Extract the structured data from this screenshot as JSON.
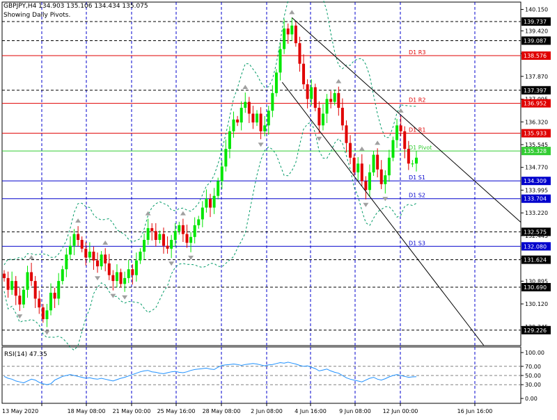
{
  "header": {
    "symbol_line": "GBPJPY,H4  134.903 135.106 134.434 135.075",
    "subtitle": "Showing Daily Pivots."
  },
  "rsi_label": "RSI(14) 47.35",
  "colors": {
    "bull": "#00e600",
    "bear": "#e00000",
    "resistance": "#e00000",
    "pivot": "#33cc33",
    "support": "#0000cc",
    "dashed": "#000000",
    "bands": "#009966",
    "rsi": "#1e90ff",
    "vgrid": "#0000cc",
    "fractal": "#a0a0a0"
  },
  "chart_data": [
    {
      "type": "candlestick",
      "symbol": "GBPJPY",
      "timeframe": "H4",
      "ylim": [
        128.7,
        140.4
      ],
      "yticks": [
        140.15,
        139.42,
        138.645,
        137.87,
        137.095,
        136.32,
        135.545,
        134.77,
        133.995,
        133.22,
        132.445,
        131.67,
        130.895,
        130.12,
        129.345
      ],
      "x_labels": [
        "13 May 2020",
        "18 May 08:00",
        "21 May 00:00",
        "25 May 16:00",
        "28 May 08:00",
        "2 Jun 08:00",
        "4 Jun 16:00",
        "9 Jun 08:00",
        "12 Jun 00:00",
        "16 Jun 16:00"
      ],
      "pivot_lines": [
        {
          "label": "D1 R3",
          "value": 138.576,
          "kind": "resistance"
        },
        {
          "label": "D1 R2",
          "value": 136.952,
          "kind": "resistance"
        },
        {
          "label": "D1 R1",
          "value": 135.933,
          "kind": "resistance"
        },
        {
          "label": "D1 Pivot",
          "value": 135.328,
          "kind": "pivot"
        },
        {
          "label": "D1 S1",
          "value": 134.309,
          "kind": "support"
        },
        {
          "label": "D1 S2",
          "value": 133.704,
          "kind": "support"
        },
        {
          "label": "D1 S3",
          "value": 132.08,
          "kind": "support"
        }
      ],
      "dashed_levels": [
        139.737,
        139.087,
        137.397,
        132.575,
        131.624,
        130.69,
        129.226
      ],
      "closes": [
        131.0,
        130.6,
        130.9,
        130.4,
        130.1,
        130.6,
        131.2,
        130.9,
        130.3,
        130.0,
        129.6,
        129.9,
        130.5,
        130.3,
        130.9,
        131.3,
        131.8,
        132.1,
        132.5,
        132.3,
        132.0,
        131.7,
        131.9,
        131.6,
        131.4,
        131.8,
        131.5,
        131.1,
        130.9,
        131.2,
        130.8,
        131.0,
        131.3,
        131.1,
        131.6,
        131.9,
        132.3,
        132.7,
        132.6,
        132.3,
        132.5,
        132.1,
        132.0,
        132.3,
        132.6,
        132.8,
        132.5,
        132.2,
        132.4,
        132.8,
        133.0,
        133.4,
        133.7,
        133.4,
        133.8,
        134.3,
        134.8,
        135.4,
        136.0,
        136.4,
        136.3,
        136.8,
        137.0,
        136.6,
        136.3,
        136.6,
        136.0,
        136.2,
        136.7,
        137.3,
        138.0,
        138.8,
        139.5,
        139.3,
        139.6,
        139.0,
        138.3,
        137.6,
        137.1,
        137.5,
        136.8,
        136.2,
        136.6,
        137.1,
        137.0,
        137.3,
        136.8,
        136.2,
        135.6,
        135.1,
        134.6,
        134.9,
        134.3,
        134.0,
        134.6,
        135.2,
        134.7,
        134.2,
        134.5,
        135.1,
        135.7,
        136.2,
        136.0,
        135.4,
        134.9,
        134.9,
        135.1
      ]
    },
    {
      "type": "line",
      "name": "RSI(14)",
      "ylim": [
        0,
        100
      ],
      "yticks": [
        100.0,
        70.0,
        50.0,
        30.0,
        0.0
      ],
      "levels": [
        70,
        50,
        30
      ],
      "values": [
        48,
        44,
        42,
        38,
        36,
        34,
        38,
        42,
        40,
        35,
        32,
        30,
        32,
        40,
        44,
        48,
        50,
        52,
        50,
        48,
        46,
        44,
        45,
        43,
        42,
        44,
        42,
        40,
        38,
        41,
        44,
        46,
        49,
        52,
        55,
        58,
        60,
        61,
        58,
        57,
        55,
        54,
        56,
        58,
        59,
        57,
        56,
        58,
        61,
        63,
        64,
        65,
        66,
        64,
        63,
        68,
        72,
        73,
        74,
        75,
        74,
        72,
        74,
        75,
        76,
        75,
        73,
        71,
        73,
        74,
        76,
        78,
        77,
        79,
        77,
        75,
        72,
        70,
        71,
        68,
        65,
        60,
        62,
        64,
        60,
        57,
        55,
        50,
        45,
        42,
        40,
        38,
        36,
        40,
        44,
        46,
        42,
        40,
        43,
        47,
        50,
        52,
        50,
        48,
        46,
        47,
        47.35
      ]
    }
  ]
}
